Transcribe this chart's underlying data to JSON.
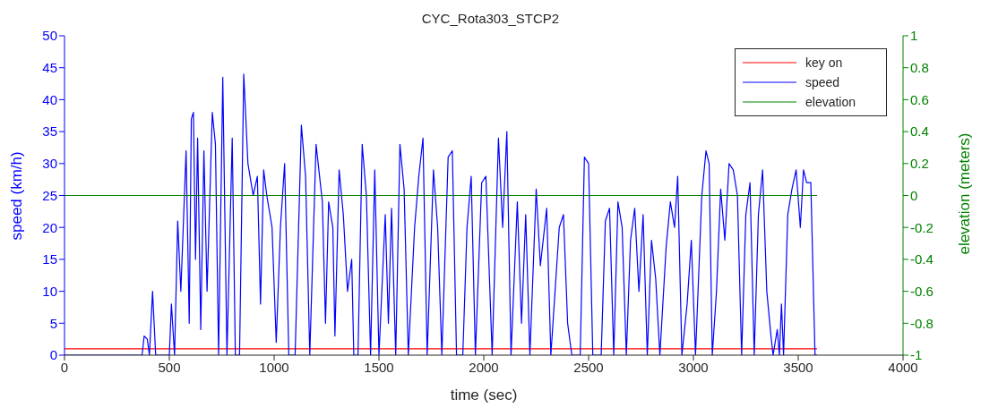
{
  "chart_data": {
    "type": "line",
    "title": "CYC_Rota303_STCP2",
    "xlabel": "time (sec)",
    "ylabel": "speed (km/h)",
    "y2label": "elevation (meters)",
    "xlim": [
      0,
      4000
    ],
    "xticks": [
      0,
      500,
      1000,
      1500,
      2000,
      2500,
      3000,
      3500,
      4000
    ],
    "ylim": [
      0,
      50
    ],
    "yticks": [
      0,
      5,
      10,
      15,
      20,
      25,
      30,
      35,
      40,
      45,
      50
    ],
    "y2lim": [
      -1,
      1
    ],
    "y2ticks": [
      -1,
      -0.8,
      -0.6,
      -0.4,
      -0.2,
      0,
      0.2,
      0.4,
      0.6,
      0.8,
      1
    ],
    "grid": false,
    "legend": "top right",
    "marker": "none",
    "line_style": "solid",
    "series": [
      {
        "name": "key on",
        "color": "#ff0000",
        "x": [
          0,
          3590
        ],
        "values": [
          1,
          1
        ]
      },
      {
        "name": "speed",
        "color": "#0000ff",
        "x": [
          0,
          370,
          380,
          395,
          405,
          420,
          435,
          500,
          510,
          525,
          540,
          555,
          580,
          595,
          605,
          615,
          625,
          635,
          650,
          665,
          680,
          705,
          720,
          735,
          755,
          775,
          800,
          815,
          835,
          855,
          875,
          900,
          920,
          935,
          950,
          965,
          990,
          1010,
          1030,
          1050,
          1070,
          1100,
          1130,
          1150,
          1170,
          1200,
          1230,
          1245,
          1260,
          1280,
          1290,
          1310,
          1330,
          1350,
          1370,
          1380,
          1400,
          1420,
          1440,
          1460,
          1480,
          1500,
          1530,
          1545,
          1560,
          1580,
          1600,
          1620,
          1640,
          1670,
          1690,
          1710,
          1730,
          1760,
          1780,
          1800,
          1830,
          1850,
          1870,
          1900,
          1920,
          1940,
          1960,
          1990,
          2010,
          2040,
          2070,
          2090,
          2110,
          2130,
          2160,
          2180,
          2200,
          2220,
          2250,
          2270,
          2300,
          2320,
          2340,
          2360,
          2380,
          2400,
          2420,
          2460,
          2480,
          2500,
          2520,
          2560,
          2580,
          2600,
          2620,
          2640,
          2660,
          2680,
          2700,
          2720,
          2740,
          2760,
          2780,
          2800,
          2820,
          2840,
          2870,
          2890,
          2910,
          2925,
          2945,
          2970,
          2990,
          3010,
          3040,
          3060,
          3075,
          3090,
          3110,
          3130,
          3150,
          3170,
          3190,
          3210,
          3230,
          3250,
          3270,
          3290,
          3310,
          3330,
          3350,
          3370,
          3380,
          3400,
          3410,
          3420,
          3430,
          3450,
          3470,
          3490,
          3510,
          3525,
          3540,
          3560,
          3580,
          3590
        ],
        "values": [
          0,
          0,
          3,
          2.5,
          0,
          10,
          0,
          0,
          8,
          0,
          21,
          10,
          32,
          5,
          37,
          38,
          15,
          34,
          4,
          32,
          10,
          38,
          33,
          0,
          43.5,
          0,
          34,
          0,
          0,
          44,
          30,
          25,
          28,
          8,
          29,
          25,
          20,
          2,
          20,
          30,
          0,
          0,
          36,
          28,
          0,
          33,
          24,
          5,
          24,
          20,
          3,
          29,
          22,
          10,
          15,
          0,
          0,
          33,
          25,
          0,
          29,
          0,
          22,
          5,
          23,
          0,
          33,
          26,
          0,
          20,
          28,
          34,
          0,
          29,
          20,
          0,
          31,
          32,
          0,
          0,
          20,
          28,
          0,
          27,
          28,
          0,
          34,
          20,
          35,
          0,
          24,
          5,
          22,
          0,
          26,
          14,
          23,
          0,
          10,
          20,
          22,
          5,
          0,
          0,
          31,
          30,
          0,
          0,
          21,
          23,
          0,
          24,
          20,
          0,
          18,
          23,
          10,
          22,
          0,
          18,
          12,
          0,
          17,
          24,
          20,
          28,
          0,
          8,
          18,
          0,
          25,
          32,
          30,
          0,
          10,
          26,
          18,
          30,
          29,
          25,
          0,
          22,
          27,
          0,
          22,
          29,
          10,
          3,
          0,
          4,
          0,
          8,
          0,
          22,
          26,
          29,
          20,
          29,
          27,
          27,
          0,
          0
        ]
      },
      {
        "name": "elevation",
        "color": "#008000",
        "axis": "y2",
        "x": [
          0,
          3590
        ],
        "values": [
          0,
          0
        ]
      }
    ]
  }
}
